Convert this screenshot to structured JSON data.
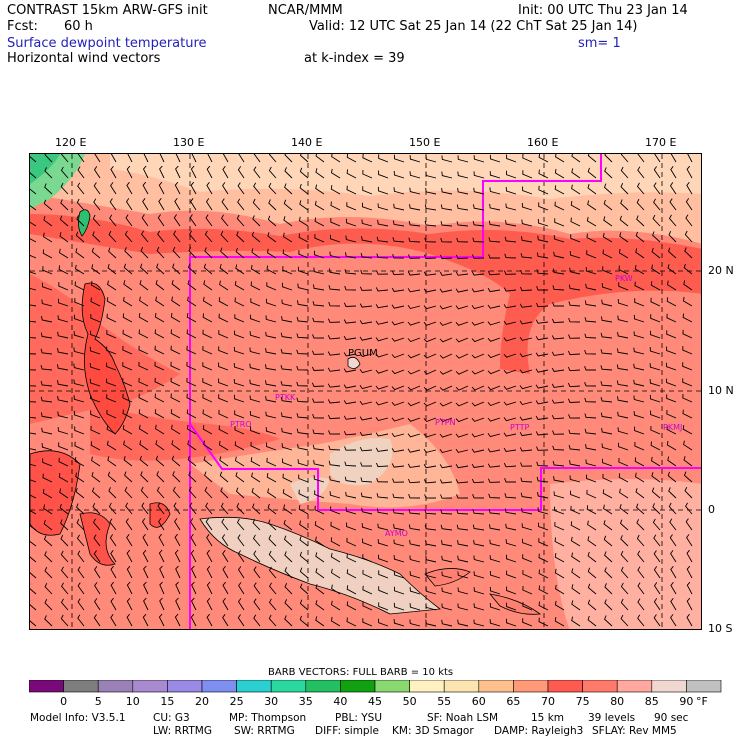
{
  "header": {
    "model": "CONTRAST 15km ARW-GFS init",
    "org": "NCAR/MMM",
    "init": "Init: 00 UTC Thu 23 Jan 14",
    "fcst_label": "Fcst:",
    "fcst_value": "60 h",
    "valid": "Valid: 12 UTC Sat 25 Jan 14 (22 ChT Sat 25 Jan 14)",
    "field1": "Surface dewpoint temperature",
    "sm": "sm= 1",
    "field2": "Horizontal wind vectors",
    "kindex": "at k-index =  39"
  },
  "map": {
    "lon_labels": [
      "120 E",
      "130 E",
      "140 E",
      "150 E",
      "160 E",
      "170 E"
    ],
    "lat_labels": [
      "20 N",
      "10 N",
      "0",
      "10 S"
    ],
    "stations": [
      {
        "id": "PGUM",
        "color": "#000000"
      },
      {
        "id": "PKW",
        "color": "#cc00cc"
      },
      {
        "id": "PKMJ",
        "color": "#cc00cc"
      },
      {
        "id": "PTPN",
        "color": "#cc00cc"
      },
      {
        "id": "PTTP",
        "color": "#cc00cc"
      },
      {
        "id": "PTKK",
        "color": "#cc00cc"
      },
      {
        "id": "PTRO",
        "color": "#cc00cc"
      },
      {
        "id": "AYMO",
        "color": "#cc00cc"
      }
    ],
    "boundary_color": "#ff00ff"
  },
  "colorbar": {
    "title": "BARB VECTORS:  FULL BARB = 10 kts",
    "unit": "°F",
    "labels": [
      "0",
      "5",
      "10",
      "15",
      "20",
      "25",
      "30",
      "35",
      "40",
      "45",
      "50",
      "55",
      "60",
      "65",
      "70",
      "75",
      "80",
      "85",
      "90"
    ],
    "colors": [
      "#7a0a7a",
      "#7e7e7e",
      "#9a82b6",
      "#a98ad0",
      "#9a8ae6",
      "#7f8ff0",
      "#2ad0d0",
      "#2ad8a0",
      "#22c060",
      "#10a010",
      "#8ad870",
      "#fff2c0",
      "#fce4b0",
      "#ffc090",
      "#ff9a78",
      "#ff5a50",
      "#ff7a6a",
      "#ffa8a0",
      "#f0d8d0",
      "#c0c0c0"
    ]
  },
  "footer": {
    "line1": [
      "Model Info: V3.5.1",
      "CU: G3",
      "MP: Thompson",
      "PBL: YSU",
      "SF: Noah LSM",
      "15 km",
      "39 levels",
      "90 sec"
    ],
    "line2": [
      "LW: RRTMG",
      "SW: RRTMG",
      "DIFF: simple",
      "KM: 3D Smagor",
      "DAMP: Rayleigh3",
      "SFLAY: Rev MM5"
    ]
  }
}
